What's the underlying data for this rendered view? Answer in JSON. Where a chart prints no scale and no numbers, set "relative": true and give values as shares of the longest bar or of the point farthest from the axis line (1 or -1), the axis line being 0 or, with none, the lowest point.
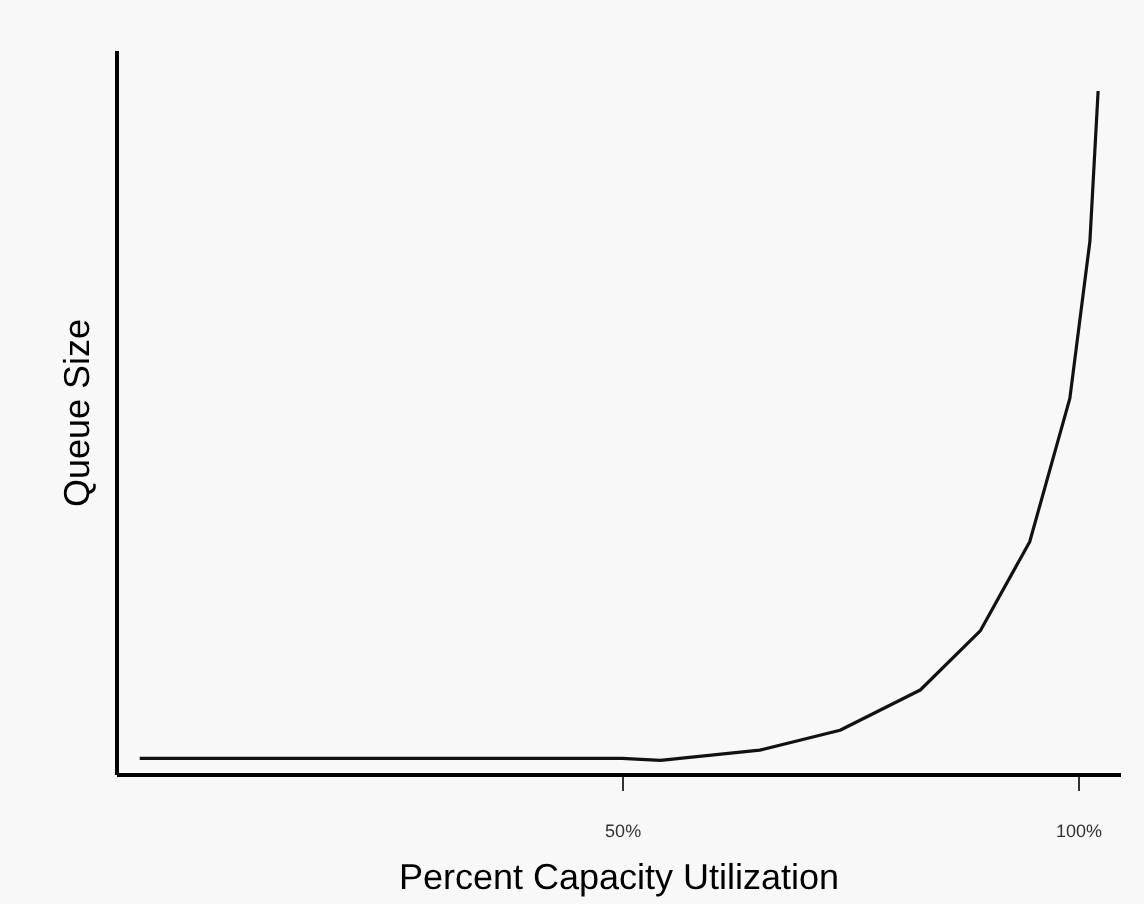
{
  "chart_data": {
    "type": "line",
    "xlabel": "Percent Capacity Utilization",
    "ylabel": "Queue Size",
    "relative": true,
    "tick_labels": "x",
    "grid": false,
    "legend": false,
    "marker": "none",
    "line_style": "solid",
    "xlim": [
      -5.5,
      104.6
    ],
    "xticks": [
      {
        "value": 50,
        "label": "50%"
      },
      {
        "value": 100,
        "label": "100%"
      }
    ],
    "x": [
      -2.9,
      50,
      54.2,
      65.1,
      73.9,
      82.7,
      89.3,
      94.7,
      99.1,
      101.3,
      102.2
    ],
    "series": [
      {
        "color": "#111111",
        "values": [
          0.023,
          0.023,
          0.02,
          0.035,
          0.064,
          0.123,
          0.21,
          0.34,
          0.55,
          0.78,
          1.0
        ]
      }
    ]
  }
}
